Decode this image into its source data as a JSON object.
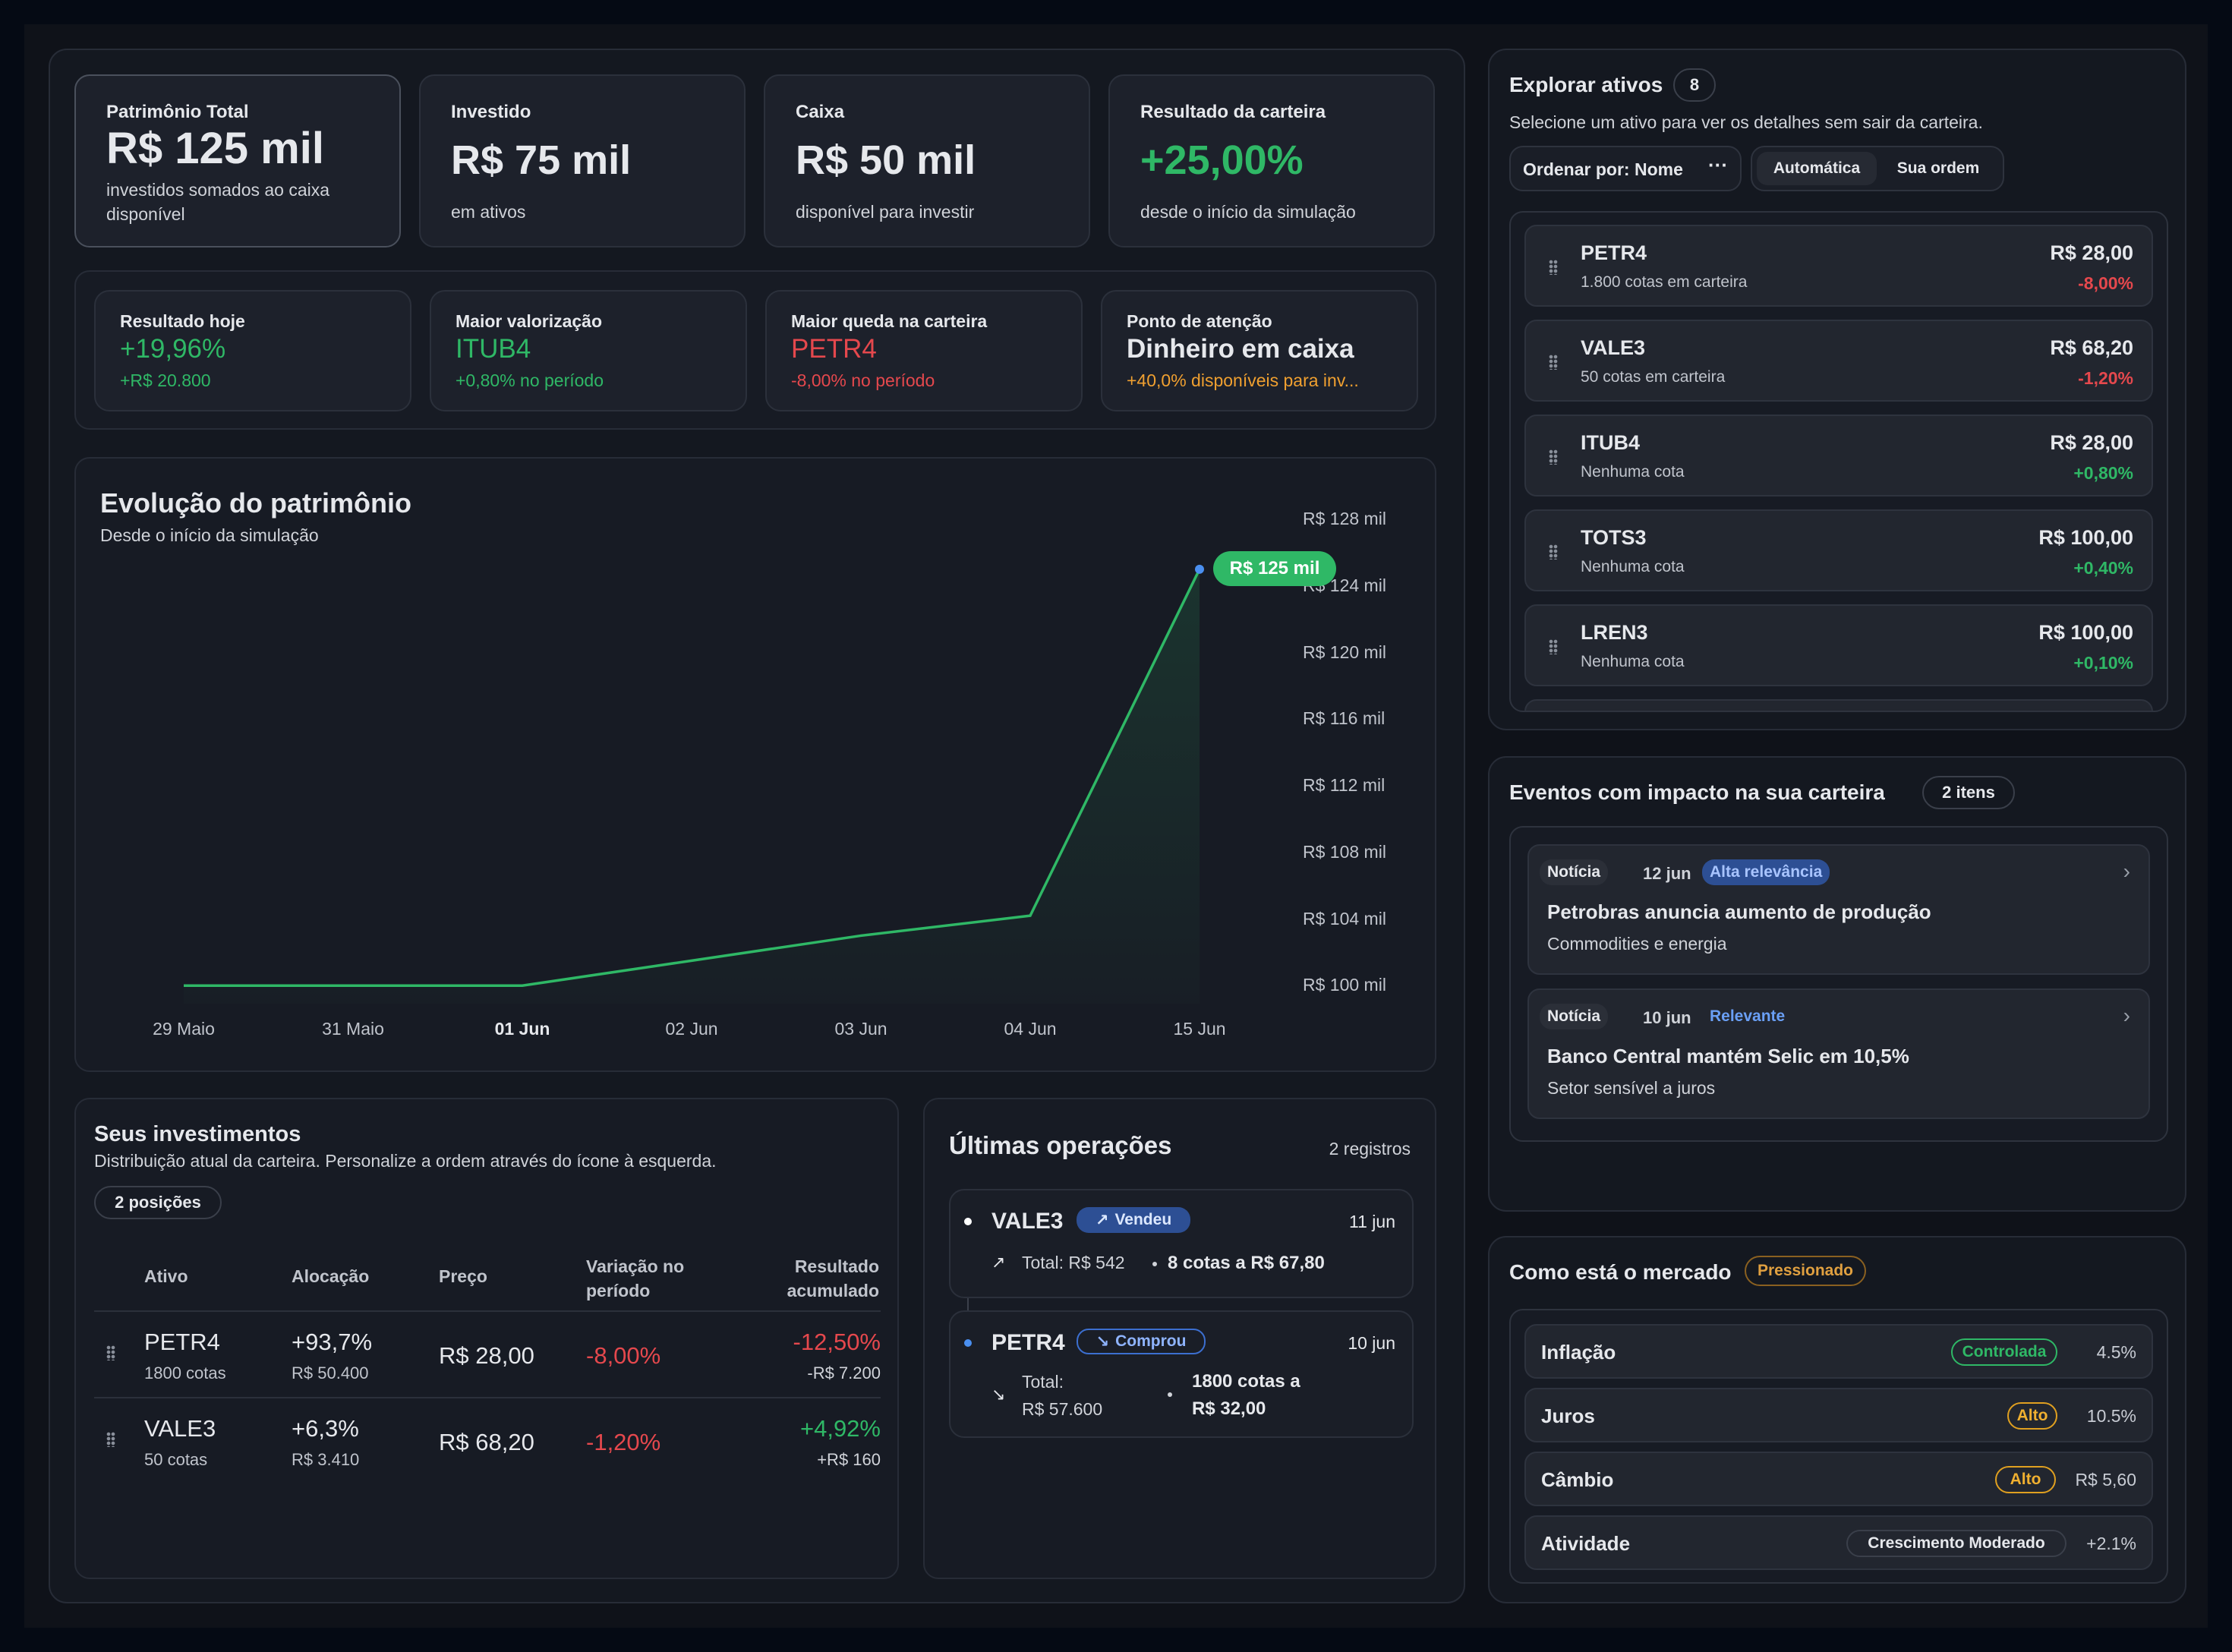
{
  "summary": [
    {
      "label": "Patrimônio Total",
      "value": "R$ 125 mil",
      "sub": "investidos somados ao caixa disponível"
    },
    {
      "label": "Investido",
      "value": "R$ 75 mil",
      "sub": "em ativos"
    },
    {
      "label": "Caixa",
      "value": "R$ 50 mil",
      "sub": "disponível para investir"
    },
    {
      "label": "Resultado da carteira",
      "value": "+25,00%",
      "sub": "desde o início da simulação"
    }
  ],
  "highlights": [
    {
      "label": "Resultado hoje",
      "value": "+19,96%",
      "sub": "+R$ 20.800"
    },
    {
      "label": "Maior valorização",
      "value": "ITUB4",
      "sub": "+0,80% no período"
    },
    {
      "label": "Maior queda na carteira",
      "value": "PETR4",
      "sub": "-8,00% no período"
    },
    {
      "label": "Ponto de atenção",
      "value": "Dinheiro em caixa",
      "sub": "+40,0% disponíveis para inv..."
    }
  ],
  "chart": {
    "title": "Evolução do patrimônio",
    "subtitle": "Desde o início da simulação",
    "tooltip": "R$ 125 mil"
  },
  "chart_data": {
    "type": "area",
    "title": "Evolução do patrimônio",
    "subtitle": "Desde o início da simulação",
    "categories": [
      "29 Maio",
      "31 Maio",
      "01 Jun",
      "02 Jun",
      "03 Jun",
      "04 Jun",
      "15 Jun"
    ],
    "y_tick_labels": [
      "R$ 128 mil",
      "R$ 124 mil",
      "R$ 120 mil",
      "R$ 116 mil",
      "R$ 112 mil",
      "R$ 108 mil",
      "R$ 104 mil",
      "R$ 100 mil"
    ],
    "y_ticks": [
      128,
      124,
      120,
      116,
      112,
      108,
      104,
      100
    ],
    "ylim": [
      96,
      128
    ],
    "values": [
      100,
      100,
      100,
      101.5,
      103,
      104.2,
      125
    ],
    "highlight_label": "R$ 125 mil",
    "bold_category": "01 Jun",
    "grid": false,
    "color": "#2fb866"
  },
  "investments": {
    "title": "Seus investimentos",
    "subtitle": "Distribuição atual da carteira. Personalize a ordem através do ícone à esquerda.",
    "count": "2 posições",
    "headers": {
      "asset": "Ativo",
      "alloc": "Alocação",
      "price": "Preço",
      "var1": "Variação no",
      "var2": "período",
      "res1": "Resultado",
      "res2": "acumulado"
    },
    "rows": [
      {
        "ticker": "PETR4",
        "qty": "1800 cotas",
        "alloc": "+93,7%",
        "alloc_sub": "R$ 50.400",
        "price": "R$ 28,00",
        "var": "-8,00%",
        "result": "-12,50%",
        "result_sub": "-R$ 7.200"
      },
      {
        "ticker": "VALE3",
        "qty": "50 cotas",
        "alloc": "+6,3%",
        "alloc_sub": "R$ 3.410",
        "price": "R$ 68,20",
        "var": "-1,20%",
        "result": "+4,92%",
        "result_sub": "+R$ 160"
      }
    ]
  },
  "operations": {
    "title": "Últimas operações",
    "count": "2 registros",
    "items": [
      {
        "ticker": "VALE3",
        "type": "Vendeu",
        "date": "11 jun",
        "total": "Total: R$ 542",
        "detail": "8 cotas a R$ 67,80"
      },
      {
        "ticker": "PETR4",
        "type": "Comprou",
        "date": "10 jun",
        "total_1": "Total:",
        "total_2": "R$ 57.600",
        "detail_1": "1800 cotas a",
        "detail_2": "R$ 32,00"
      }
    ]
  },
  "explore": {
    "title": "Explorar ativos",
    "count": "8",
    "subtitle": "Selecione um ativo para ver os detalhes sem sair da carteira.",
    "sort_label": "Ordenar por: Nome",
    "toggle": [
      "Automática",
      "Sua ordem"
    ],
    "assets": [
      {
        "ticker": "PETR4",
        "sub": "1.800 cotas em carteira",
        "price": "R$ 28,00",
        "change": "-8,00%"
      },
      {
        "ticker": "VALE3",
        "sub": "50 cotas em carteira",
        "price": "R$ 68,20",
        "change": "-1,20%"
      },
      {
        "ticker": "ITUB4",
        "sub": "Nenhuma cota",
        "price": "R$ 28,00",
        "change": "+0,80%"
      },
      {
        "ticker": "TOTS3",
        "sub": "Nenhuma cota",
        "price": "R$ 100,00",
        "change": "+0,40%"
      },
      {
        "ticker": "LREN3",
        "sub": "Nenhuma cota",
        "price": "R$ 100,00",
        "change": "+0,10%"
      }
    ]
  },
  "events": {
    "title": "Eventos com impacto na sua carteira",
    "count": "2 itens",
    "items": [
      {
        "kind": "Notícia",
        "date": "12 jun",
        "relevance": "Alta relevância",
        "title": "Petrobras anuncia aumento de produção",
        "category": "Commodities e energia"
      },
      {
        "kind": "Notícia",
        "date": "10 jun",
        "relevance": "Relevante",
        "title": "Banco Central mantém Selic em 10,5%",
        "category": "Setor sensível a juros"
      }
    ]
  },
  "market": {
    "title": "Como está o mercado",
    "status": "Pressionado",
    "rows": [
      {
        "label": "Inflação",
        "badge": "Controlada",
        "value": "4.5%"
      },
      {
        "label": "Juros",
        "badge": "Alto",
        "value": "10.5%"
      },
      {
        "label": "Câmbio",
        "badge": "Alto",
        "value": "R$ 5,60"
      },
      {
        "label": "Atividade",
        "badge": "Crescimento Moderado",
        "value": "+2.1%"
      }
    ]
  }
}
